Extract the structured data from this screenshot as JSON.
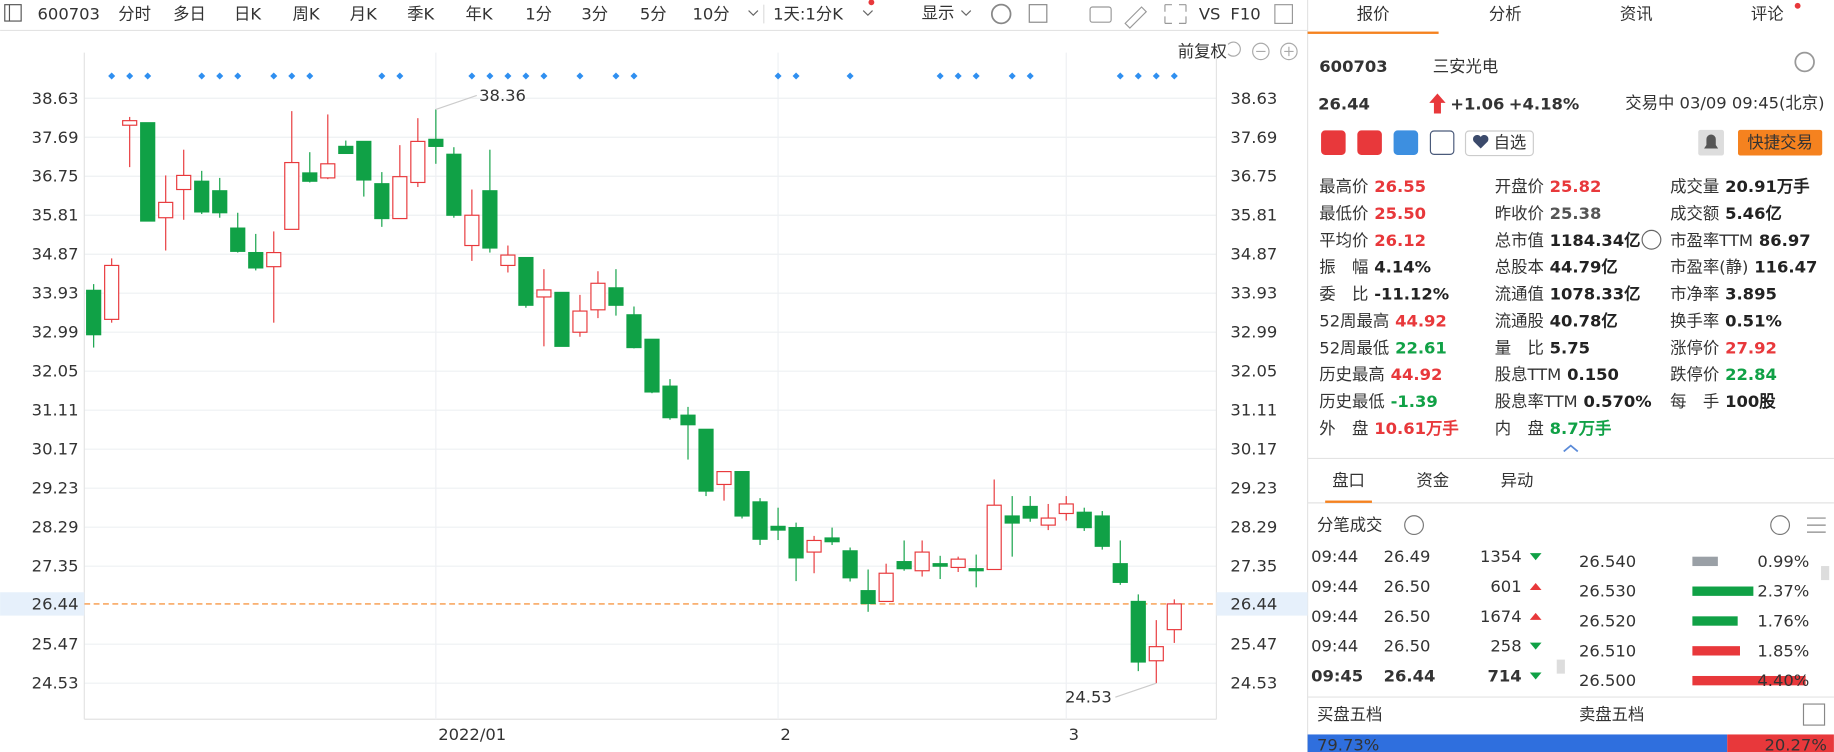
{
  "toolbar": {
    "code": "600703",
    "periods": [
      "分时",
      "多日",
      "日K",
      "周K",
      "月K",
      "季K",
      "年K",
      "1分",
      "3分",
      "5分",
      "10分"
    ],
    "active_period": 2,
    "minute_select": "1天:1分K",
    "display": "显示",
    "vs": "VS",
    "f10": "F10"
  },
  "chart": {
    "type": "candlestick",
    "adjust": "前复权",
    "up_color": "#e8383b",
    "down_color": "#10a146",
    "ylim": [
      23.66,
      39.73
    ],
    "yticks": [
      38.63,
      37.69,
      36.75,
      35.81,
      34.87,
      33.93,
      32.99,
      32.05,
      31.11,
      30.17,
      29.23,
      28.29,
      27.35,
      25.47,
      24.53
    ],
    "current_price": 26.44,
    "categories": [
      null,
      null,
      null,
      null,
      null,
      null,
      null,
      null,
      null,
      null,
      null,
      null,
      null,
      null,
      null,
      null,
      null,
      null,
      null,
      "2022/01",
      null,
      null,
      null,
      null,
      null,
      null,
      null,
      null,
      null,
      null,
      null,
      null,
      null,
      null,
      null,
      null,
      null,
      null,
      "2",
      null,
      null,
      null,
      null,
      null,
      null,
      null,
      null,
      null,
      null,
      null,
      null,
      null,
      null,
      null,
      "3",
      null,
      null,
      null,
      null,
      null,
      null
    ],
    "max_index": 19,
    "min_index": 59,
    "candles": [
      {
        "o": 34.0,
        "h": 34.15,
        "l": 32.62,
        "c": 32.93
      },
      {
        "o": 33.3,
        "h": 34.77,
        "l": 33.22,
        "c": 34.6
      },
      {
        "o": 37.98,
        "h": 38.18,
        "l": 36.97,
        "c": 38.09
      },
      {
        "o": 38.04,
        "h": 38.04,
        "l": 35.67,
        "c": 35.67
      },
      {
        "o": 35.75,
        "h": 36.77,
        "l": 34.96,
        "c": 36.12
      },
      {
        "o": 36.43,
        "h": 37.39,
        "l": 35.7,
        "c": 36.77
      },
      {
        "o": 36.63,
        "h": 36.88,
        "l": 35.84,
        "c": 35.89
      },
      {
        "o": 36.4,
        "h": 36.71,
        "l": 35.75,
        "c": 35.87
      },
      {
        "o": 35.5,
        "h": 35.87,
        "l": 34.91,
        "c": 34.94
      },
      {
        "o": 34.91,
        "h": 35.36,
        "l": 34.48,
        "c": 34.54
      },
      {
        "o": 34.57,
        "h": 35.42,
        "l": 33.22,
        "c": 34.91
      },
      {
        "o": 35.47,
        "h": 38.32,
        "l": 35.47,
        "c": 37.08
      },
      {
        "o": 36.83,
        "h": 37.33,
        "l": 36.6,
        "c": 36.63
      },
      {
        "o": 36.71,
        "h": 38.24,
        "l": 36.68,
        "c": 37.05
      },
      {
        "o": 37.47,
        "h": 37.61,
        "l": 37.3,
        "c": 37.3
      },
      {
        "o": 37.59,
        "h": 37.59,
        "l": 36.26,
        "c": 36.66
      },
      {
        "o": 36.57,
        "h": 36.85,
        "l": 35.53,
        "c": 35.73
      },
      {
        "o": 35.73,
        "h": 37.5,
        "l": 35.73,
        "c": 36.74
      },
      {
        "o": 36.6,
        "h": 38.15,
        "l": 36.49,
        "c": 37.59
      },
      {
        "o": 37.64,
        "h": 38.36,
        "l": 37.05,
        "c": 37.47
      },
      {
        "o": 37.28,
        "h": 37.45,
        "l": 35.75,
        "c": 35.81
      },
      {
        "o": 35.08,
        "h": 36.43,
        "l": 34.71,
        "c": 35.81
      },
      {
        "o": 36.4,
        "h": 37.39,
        "l": 34.91,
        "c": 35.02
      },
      {
        "o": 34.6,
        "h": 35.08,
        "l": 34.43,
        "c": 34.85
      },
      {
        "o": 34.79,
        "h": 34.79,
        "l": 33.58,
        "c": 33.64
      },
      {
        "o": 33.84,
        "h": 34.51,
        "l": 32.65,
        "c": 34.01
      },
      {
        "o": 33.95,
        "h": 33.95,
        "l": 32.65,
        "c": 32.65
      },
      {
        "o": 32.99,
        "h": 33.89,
        "l": 32.88,
        "c": 33.5
      },
      {
        "o": 33.53,
        "h": 34.46,
        "l": 33.33,
        "c": 34.17
      },
      {
        "o": 34.06,
        "h": 34.51,
        "l": 33.39,
        "c": 33.64
      },
      {
        "o": 33.41,
        "h": 33.61,
        "l": 32.6,
        "c": 32.62
      },
      {
        "o": 32.82,
        "h": 32.82,
        "l": 31.52,
        "c": 31.55
      },
      {
        "o": 31.69,
        "h": 31.86,
        "l": 30.88,
        "c": 30.93
      },
      {
        "o": 30.99,
        "h": 31.19,
        "l": 29.92,
        "c": 30.76
      },
      {
        "o": 30.65,
        "h": 30.65,
        "l": 29.04,
        "c": 29.16
      },
      {
        "o": 29.32,
        "h": 29.63,
        "l": 28.93,
        "c": 29.63
      },
      {
        "o": 29.63,
        "h": 29.63,
        "l": 28.5,
        "c": 28.56
      },
      {
        "o": 28.9,
        "h": 28.99,
        "l": 27.86,
        "c": 28.0
      },
      {
        "o": 28.31,
        "h": 28.76,
        "l": 27.98,
        "c": 28.22
      },
      {
        "o": 28.28,
        "h": 28.4,
        "l": 26.99,
        "c": 27.55
      },
      {
        "o": 27.69,
        "h": 28.08,
        "l": 27.18,
        "c": 27.97
      },
      {
        "o": 28.03,
        "h": 28.28,
        "l": 27.86,
        "c": 27.94
      },
      {
        "o": 27.72,
        "h": 27.8,
        "l": 26.98,
        "c": 27.07
      },
      {
        "o": 26.76,
        "h": 27.27,
        "l": 26.25,
        "c": 26.45
      },
      {
        "o": 26.5,
        "h": 27.41,
        "l": 26.5,
        "c": 27.18
      },
      {
        "o": 27.46,
        "h": 27.97,
        "l": 27.24,
        "c": 27.29
      },
      {
        "o": 27.24,
        "h": 27.97,
        "l": 27.1,
        "c": 27.69
      },
      {
        "o": 27.41,
        "h": 27.6,
        "l": 27.04,
        "c": 27.35
      },
      {
        "o": 27.32,
        "h": 27.58,
        "l": 27.21,
        "c": 27.52
      },
      {
        "o": 27.29,
        "h": 27.63,
        "l": 26.84,
        "c": 27.24
      },
      {
        "o": 27.27,
        "h": 29.44,
        "l": 27.27,
        "c": 28.82
      },
      {
        "o": 28.56,
        "h": 29.04,
        "l": 27.58,
        "c": 28.39
      },
      {
        "o": 28.79,
        "h": 29.04,
        "l": 28.42,
        "c": 28.51
      },
      {
        "o": 28.34,
        "h": 28.85,
        "l": 28.22,
        "c": 28.51
      },
      {
        "o": 28.62,
        "h": 29.04,
        "l": 28.45,
        "c": 28.85
      },
      {
        "o": 28.65,
        "h": 28.76,
        "l": 28.2,
        "c": 28.28
      },
      {
        "o": 28.56,
        "h": 28.68,
        "l": 27.75,
        "c": 27.83
      },
      {
        "o": 27.41,
        "h": 27.97,
        "l": 26.9,
        "c": 26.96
      },
      {
        "o": 26.5,
        "h": 26.67,
        "l": 24.82,
        "c": 25.04
      },
      {
        "o": 25.07,
        "h": 26.05,
        "l": 24.53,
        "c": 25.41
      },
      {
        "o": 25.82,
        "h": 26.55,
        "l": 25.5,
        "c": 26.44
      }
    ]
  },
  "tabs": [
    "报价",
    "分析",
    "资讯",
    "评论"
  ],
  "quote": {
    "code": "600703",
    "name": "三安光电",
    "change": "+1.06",
    "change_pct": "+4.18%",
    "status": "交易中 03/09 09:45(北京)",
    "watch": "自选",
    "trade": "快捷交易"
  },
  "stats": [
    [
      {
        "label": "最高价",
        "value": "26.55",
        "color": "#e8383b"
      },
      {
        "label": "最低价",
        "value": "25.50",
        "color": "#e8383b"
      },
      {
        "label": "平均价",
        "value": "26.12",
        "color": "#e8383b"
      },
      {
        "label": "振　幅",
        "value": "4.14%",
        "color": "#222"
      },
      {
        "label": "委　比",
        "value": "-11.12%",
        "color": "#222"
      },
      {
        "label": "52周最高",
        "value": "44.92",
        "color": "#e8383b"
      },
      {
        "label": "52周最低",
        "value": "22.61",
        "color": "#10a146"
      },
      {
        "label": "历史最高",
        "value": "44.92",
        "color": "#e8383b"
      },
      {
        "label": "历史最低",
        "value": "-1.39",
        "color": "#10a146"
      },
      {
        "label": "外　盘",
        "value": "10.61万手",
        "color": "#e8383b"
      }
    ],
    [
      {
        "label": "开盘价",
        "value": "25.82",
        "color": "#e8383b"
      },
      {
        "label": "昨收价",
        "value": "25.38",
        "color": "#555"
      },
      {
        "label": "总市值",
        "value": "1184.34亿",
        "color": "#222"
      },
      {
        "label": "总股本",
        "value": "44.79亿",
        "color": "#222"
      },
      {
        "label": "流通值",
        "value": "1078.33亿",
        "color": "#222"
      },
      {
        "label": "流通股",
        "value": "40.78亿",
        "color": "#222"
      },
      {
        "label": "量　比",
        "value": "5.75",
        "color": "#222"
      },
      {
        "label": "股息TTM",
        "value": "0.150",
        "color": "#222"
      },
      {
        "label": "股息率TTM",
        "value": "0.570%",
        "color": "#222"
      },
      {
        "label": "内　盘",
        "value": "8.7万手",
        "color": "#10a146"
      }
    ],
    [
      {
        "label": "成交量",
        "value": "20.91万手",
        "color": "#222"
      },
      {
        "label": "成交额",
        "value": "5.46亿",
        "color": "#222"
      },
      {
        "label": "市盈率TTM",
        "value": "86.97",
        "color": "#222"
      },
      {
        "label": "市盈率(静)",
        "value": "116.47",
        "color": "#222"
      },
      {
        "label": "市净率",
        "value": "3.895",
        "color": "#222"
      },
      {
        "label": "换手率",
        "value": "0.51%",
        "color": "#222"
      },
      {
        "label": "涨停价",
        "value": "27.92",
        "color": "#e8383b"
      },
      {
        "label": "跌停价",
        "value": "22.84",
        "color": "#10a146"
      },
      {
        "label": "每　手",
        "value": "100股",
        "color": "#222"
      }
    ]
  ],
  "subtabs": [
    "盘口",
    "资金",
    "异动"
  ],
  "ticks_title": "分笔成交",
  "trades": [
    {
      "time": "09:44",
      "price": "26.49",
      "volume": "1354",
      "direction": "down"
    },
    {
      "time": "09:44",
      "price": "26.50",
      "volume": "601",
      "direction": "up"
    },
    {
      "time": "09:44",
      "price": "26.50",
      "volume": "1674",
      "direction": "up"
    },
    {
      "time": "09:44",
      "price": "26.50",
      "volume": "258",
      "direction": "down"
    },
    {
      "time": "09:45",
      "price": "26.44",
      "volume": "714",
      "direction": "down"
    }
  ],
  "orderbook": {
    "prices": [
      "26.540",
      "26.530",
      "26.520",
      "26.510",
      "26.500"
    ],
    "values": [
      0.99,
      2.37,
      1.76,
      1.85,
      4.4
    ],
    "value_labels": [
      "0.99%",
      "2.37%",
      "1.76%",
      "1.85%",
      "4.40%"
    ],
    "colors": [
      "#9aa0a6",
      "#10a146",
      "#10a146",
      "#e8383b",
      "#e8383b"
    ]
  },
  "bid_title": "买盘五档",
  "ask_title": "卖盘五档",
  "ratio": {
    "values": [
      79.73,
      20.27
    ],
    "value_labels": [
      "79.73%",
      "20.27%"
    ],
    "colors": [
      "#2f6fde",
      "#e8383b"
    ]
  }
}
